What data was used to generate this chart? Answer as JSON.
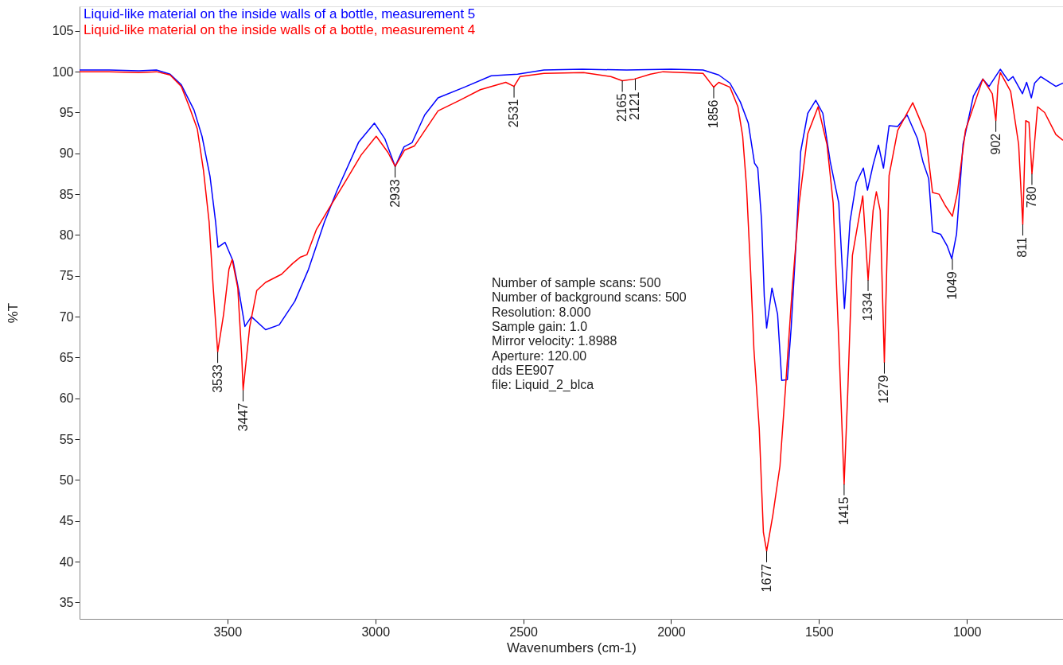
{
  "chart_data": {
    "type": "line",
    "xlabel": "Wavenumbers (cm-1)",
    "ylabel": "%T",
    "xlim": [
      4000,
      675
    ],
    "xticks": [
      3500,
      3000,
      2500,
      2000,
      1500,
      1000
    ],
    "ylim": [
      33,
      108
    ],
    "yticks": [
      35,
      40,
      45,
      50,
      55,
      60,
      65,
      70,
      75,
      80,
      85,
      90,
      95,
      100,
      105
    ],
    "grid": false,
    "legend": "top left",
    "line_style": "solid",
    "series": [
      {
        "name": "Liquid-like material on the inside walls of a bottle, measurement 5",
        "color": "#0000ff",
        "x": [
          4000,
          3900,
          3800,
          3740,
          3694,
          3656,
          3613,
          3586,
          3559,
          3540,
          3532,
          3508,
          3481,
          3460,
          3441,
          3419,
          3371,
          3325,
          3272,
          3226,
          3172,
          3129,
          3056,
          3003,
          2968,
          2933,
          2903,
          2876,
          2833,
          2788,
          2699,
          2608,
          2519,
          2430,
          2300,
          2150,
          2000,
          1892,
          1839,
          1801,
          1766,
          1739,
          1718,
          1707,
          1694,
          1685,
          1677,
          1659,
          1640,
          1626,
          1607,
          1594,
          1578,
          1562,
          1538,
          1511,
          1487,
          1462,
          1433,
          1414,
          1395,
          1374,
          1350,
          1336,
          1317,
          1299,
          1282,
          1263,
          1234,
          1202,
          1167,
          1148,
          1129,
          1116,
          1089,
          1067,
          1051,
          1035,
          1013,
          978,
          946,
          925,
          887,
          860,
          844,
          812,
          798,
          782,
          771,
          750,
          699,
          675
        ],
        "values": [
          100.2,
          100.2,
          100.1,
          100.2,
          99.7,
          98.4,
          95.3,
          92.1,
          87.2,
          81.6,
          78.5,
          79.1,
          76.8,
          72.9,
          68.8,
          70.0,
          68.4,
          69.0,
          71.9,
          75.8,
          81.6,
          85.5,
          91.4,
          93.7,
          91.8,
          88.4,
          90.8,
          91.3,
          94.7,
          96.8,
          98.1,
          99.5,
          99.7,
          100.2,
          100.3,
          100.2,
          100.3,
          100.2,
          99.6,
          98.6,
          96.3,
          93.7,
          88.8,
          88.2,
          81.7,
          72.5,
          68.6,
          73.5,
          70.3,
          62.2,
          62.3,
          68.7,
          78.8,
          90.2,
          94.9,
          96.5,
          94.9,
          89.0,
          83.9,
          71.0,
          81.7,
          86.4,
          88.2,
          85.5,
          88.6,
          91.0,
          88.2,
          93.4,
          93.3,
          94.7,
          91.8,
          88.9,
          86.9,
          80.4,
          80.1,
          78.7,
          77.1,
          80.1,
          91.1,
          97.0,
          99.1,
          98.2,
          100.3,
          98.9,
          99.4,
          97.3,
          98.7,
          96.8,
          98.6,
          99.4,
          98.2,
          98.6
        ]
      },
      {
        "name": "Liquid-like material on the inside walls of a bottle, measurement 4",
        "color": "#ff0000",
        "x": [
          4000,
          3900,
          3800,
          3740,
          3694,
          3656,
          3629,
          3602,
          3581,
          3562,
          3548,
          3533,
          3513,
          3495,
          3484,
          3465,
          3452,
          3447,
          3425,
          3401,
          3371,
          3317,
          3280,
          3253,
          3231,
          3199,
          3156,
          3102,
          3048,
          2997,
          2957,
          2933,
          2901,
          2868,
          2788,
          2715,
          2645,
          2559,
          2531,
          2511,
          2430,
          2296,
          2204,
          2165,
          2124,
          2070,
          2027,
          1892,
          1856,
          1839,
          1801,
          1774,
          1758,
          1745,
          1731,
          1720,
          1702,
          1688,
          1677,
          1656,
          1632,
          1613,
          1591,
          1567,
          1538,
          1503,
          1473,
          1452,
          1433,
          1415,
          1403,
          1387,
          1352,
          1334,
          1317,
          1306,
          1293,
          1279,
          1263,
          1234,
          1183,
          1161,
          1140,
          1116,
          1094,
          1073,
          1049,
          1032,
          1005,
          946,
          914,
          902,
          895,
          887,
          852,
          825,
          811,
          801,
          790,
          780,
          761,
          737,
          699,
          675
        ],
        "values": [
          100.0,
          100.0,
          99.9,
          100.0,
          99.6,
          98.2,
          95.7,
          93.0,
          87.9,
          81.6,
          73.5,
          65.7,
          70.3,
          75.8,
          77.0,
          73.5,
          65.4,
          61.0,
          68.7,
          73.2,
          74.2,
          75.2,
          76.5,
          77.3,
          77.6,
          80.7,
          83.3,
          86.5,
          89.8,
          92.1,
          90.1,
          88.4,
          90.4,
          90.9,
          95.2,
          96.5,
          97.8,
          98.7,
          98.2,
          99.4,
          99.8,
          99.9,
          99.4,
          98.9,
          99.1,
          99.7,
          100.0,
          99.8,
          98.1,
          98.7,
          98.1,
          95.7,
          92.1,
          85.9,
          75.4,
          66.0,
          56.3,
          43.6,
          41.3,
          45.7,
          51.7,
          61.4,
          73.2,
          83.9,
          92.4,
          95.7,
          91.1,
          83.9,
          66.9,
          49.5,
          60.5,
          77.5,
          84.8,
          74.5,
          83.0,
          85.3,
          83.0,
          64.4,
          87.3,
          92.8,
          96.2,
          94.3,
          92.4,
          85.2,
          85.0,
          83.6,
          82.3,
          85.2,
          92.8,
          99.1,
          97.3,
          94.0,
          98.3,
          99.9,
          97.6,
          91.1,
          81.3,
          94.0,
          93.8,
          87.5,
          95.7,
          95.0,
          92.3,
          91.6
        ]
      }
    ],
    "annotations": [
      {
        "text": "3533",
        "x": 3533,
        "y": 65.7
      },
      {
        "text": "3447",
        "x": 3447,
        "y": 61.0
      },
      {
        "text": "2933",
        "x": 2933,
        "y": 88.4
      },
      {
        "text": "2531",
        "x": 2531,
        "y": 98.2
      },
      {
        "text": "2165",
        "x": 2165,
        "y": 98.9
      },
      {
        "text": "2121",
        "x": 2121,
        "y": 99.1
      },
      {
        "text": "1856",
        "x": 1856,
        "y": 98.1
      },
      {
        "text": "1677",
        "x": 1677,
        "y": 41.3
      },
      {
        "text": "1415",
        "x": 1415,
        "y": 49.5
      },
      {
        "text": "1334",
        "x": 1334,
        "y": 74.5
      },
      {
        "text": "1279",
        "x": 1279,
        "y": 64.4
      },
      {
        "text": "1049",
        "x": 1049,
        "y": 77.1
      },
      {
        "text": "902",
        "x": 902,
        "y": 94.0
      },
      {
        "text": "811",
        "x": 811,
        "y": 81.3
      },
      {
        "text": "780",
        "x": 780,
        "y": 87.5
      },
      "Number of sample scans: 500",
      "Number of background scans: 500",
      "Resolution: 8.000",
      "Sample gain: 1.0",
      "Mirror velocity: 1.8988",
      "Aperture: 120.00",
      "dds EE907",
      "file: Liquid_2_blca"
    ]
  }
}
